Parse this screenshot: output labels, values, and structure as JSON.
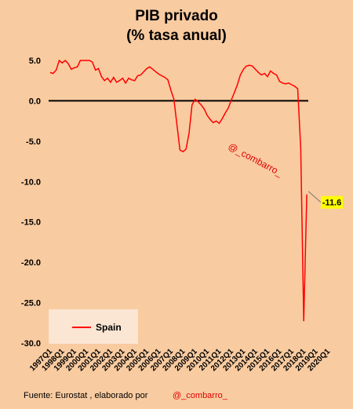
{
  "title_line1": "PIB privado",
  "title_line2": "(% tasa anual)",
  "watermark": "@_combarro_",
  "footer": {
    "source": "Fuente: Eurostat , elaborado por",
    "handle": "@_combarro_"
  },
  "chart_data": {
    "type": "line",
    "ylim": [
      -30,
      5
    ],
    "yticks": [
      5,
      0,
      -5,
      -10,
      -15,
      -20,
      -25,
      -30
    ],
    "ytick_labels": [
      "5.0",
      "0.0",
      "-5.0",
      "-10.0",
      "-15.0",
      "-20.0",
      "-25.0",
      "-30.0"
    ],
    "x_start": "1997Q1",
    "xtick_labels": [
      "1997Q1",
      "1998Q1",
      "1999Q1",
      "2000Q1",
      "2001Q1",
      "2002Q1",
      "2003Q1",
      "2004Q1",
      "2005Q1",
      "2006Q1",
      "2007Q1",
      "2008Q1",
      "2009Q1",
      "2010Q1",
      "2011Q1",
      "2012Q1",
      "2013Q1",
      "2014Q1",
      "2015Q1",
      "2016Q1",
      "2017Q1",
      "2018Q1",
      "2019Q1",
      "2020Q1"
    ],
    "legend": {
      "position": "bottom-left",
      "entry": "Spain"
    },
    "series": [
      {
        "name": "Spain",
        "color": "#ff0000",
        "values": [
          3.5,
          3.4,
          3.8,
          5.0,
          4.7,
          5.0,
          4.6,
          3.9,
          4.1,
          4.2,
          5.4,
          5.6,
          5.6,
          5.0,
          4.8,
          3.8,
          4.0,
          3.0,
          2.5,
          2.8,
          2.3,
          2.9,
          2.3,
          2.5,
          2.8,
          2.2,
          2.8,
          2.6,
          2.5,
          3.1,
          3.2,
          3.6,
          4.0,
          4.2,
          3.9,
          3.6,
          3.3,
          3.1,
          2.9,
          2.6,
          1.3,
          0.2,
          -3.0,
          -6.1,
          -6.3,
          -6.0,
          -4.0,
          -0.5,
          0.2,
          -0.1,
          -0.5,
          -1.0,
          -1.8,
          -2.3,
          -2.7,
          -2.5,
          -2.8,
          -2.2,
          -1.5,
          -0.9,
          0.1,
          1.0,
          2.0,
          3.2,
          3.9,
          4.3,
          4.4,
          4.3,
          3.9,
          3.5,
          3.2,
          3.4,
          3.0,
          3.7,
          3.4,
          3.2,
          2.4,
          2.2,
          2.1,
          2.2,
          2.0,
          1.8,
          1.5,
          -6.0,
          -27.3,
          -11.6
        ]
      }
    ],
    "end_label": "-11.6"
  }
}
